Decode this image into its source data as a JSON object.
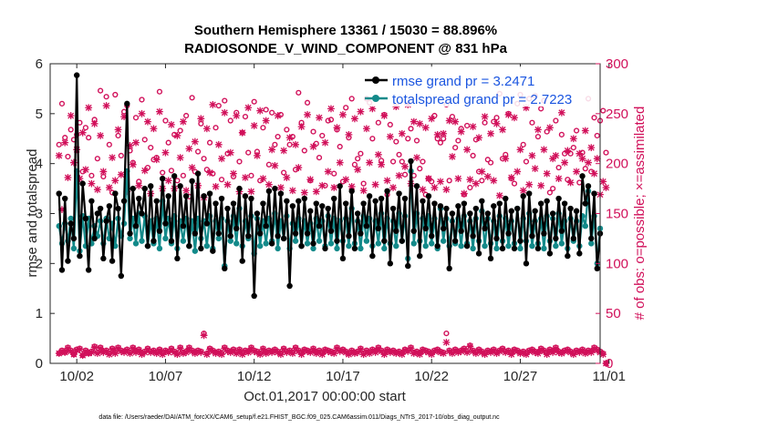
{
  "chart_data": {
    "type": "line",
    "title_line1": "Southern Hemisphere 13361 / 15030 = 88.896%",
    "title_line2": "RADIOSONDE_V_WIND_COMPONENT @ 831 hPa",
    "xlabel": "Oct.01,2017 00:00:00 start",
    "ylabel": "rmse and totalspread",
    "ylabel_right": "# of obs: o=possible; ×=assimilated",
    "footer": "data file: /Users/raeder/DAI/ATM_forcXX/CAM6_setup/f.e21.FHIST_BGC.f09_025.CAM6assim.011/Diags_NTrS_2017-10/obs_diag_output.nc",
    "xlim": [
      0.5,
      31.5
    ],
    "ylim": [
      0,
      6
    ],
    "ylim_right": [
      0,
      300
    ],
    "x_ticks": [
      2,
      7,
      12,
      17,
      22,
      27,
      32
    ],
    "x_tick_labels": [
      "10/02",
      "10/07",
      "10/12",
      "10/17",
      "10/22",
      "10/27",
      "11/01"
    ],
    "y_ticks": [
      0,
      1,
      2,
      3,
      4,
      5,
      6
    ],
    "y_ticks_right": [
      0,
      50,
      100,
      150,
      200,
      250,
      300
    ],
    "series": [
      {
        "name": "rmse grand pr = 3.2471",
        "color": "#000000",
        "marker": "filled-circle",
        "values": [
          3.4,
          1.87,
          3.3,
          2.05,
          2.8,
          2.5,
          5.77,
          2.15,
          3.6,
          2.9,
          1.87,
          3.25,
          2.5,
          3.0,
          3.1,
          2.1,
          2.85,
          3.15,
          2.05,
          3.4,
          3.1,
          1.75,
          3.25,
          5.2,
          2.6,
          3.5,
          2.75,
          3.3,
          3.0,
          3.5,
          2.35,
          3.55,
          2.45,
          3.25,
          2.65,
          3.7,
          2.8,
          3.35,
          2.45,
          3.75,
          2.1,
          3.55,
          2.75,
          3.35,
          2.35,
          3.65,
          2.6,
          3.8,
          2.3,
          3.35,
          2.8,
          3.4,
          2.25,
          3.2,
          2.6,
          3.3,
          1.9,
          3.1,
          2.55,
          3.2,
          2.7,
          3.5,
          2.05,
          3.35,
          2.55,
          3.3,
          1.35,
          3.0,
          2.6,
          3.2,
          2.75,
          3.45,
          2.4,
          3.5,
          2.55,
          3.4,
          2.5,
          3.25,
          1.55,
          3.15,
          2.6,
          3.25,
          2.35,
          3.3,
          2.6,
          3.05,
          2.4,
          3.2,
          2.75,
          3.15,
          2.3,
          3.1,
          2.65,
          3.3,
          2.45,
          3.55,
          2.1,
          3.2,
          2.55,
          3.45,
          2.3,
          3.0,
          2.6,
          3.2,
          2.75,
          3.35,
          2.15,
          3.25,
          2.7,
          3.3,
          2.45,
          3.45,
          2.0,
          3.1,
          2.65,
          3.4,
          2.45,
          3.3,
          1.95,
          4.05,
          2.65,
          3.55,
          2.15,
          3.25,
          2.7,
          3.35,
          2.55,
          3.2,
          2.35,
          3.15,
          2.7,
          3.1,
          1.9,
          3.0,
          2.45,
          3.15,
          2.65,
          3.2,
          2.35,
          3.0,
          2.55,
          3.1,
          2.2,
          3.25,
          2.7,
          3.0,
          2.1,
          3.15,
          2.5,
          3.2,
          2.3,
          3.3,
          2.6,
          3.05,
          2.3,
          3.1,
          2.45,
          3.35,
          2.0,
          3.4,
          2.55,
          3.05,
          2.3,
          3.2,
          2.6,
          3.25,
          2.2,
          3.0,
          2.5,
          3.3,
          2.65,
          3.2,
          2.15,
          3.1,
          2.5,
          3.05,
          2.2,
          3.75,
          3.2,
          3.55,
          2.5,
          3.4,
          1.9,
          2.6
        ]
      },
      {
        "name": "totalspread grand pr = 2.7223",
        "color": "#138a8a",
        "marker": "filled-circle",
        "values": [
          2.75,
          2.4,
          2.8,
          2.45,
          2.9,
          2.3,
          3.85,
          2.25,
          2.95,
          2.35,
          2.9,
          2.4,
          2.75,
          2.55,
          2.85,
          2.4,
          2.9,
          2.5,
          2.8,
          2.35,
          2.9,
          2.55,
          2.8,
          3.85,
          2.5,
          2.9,
          2.4,
          3.0,
          2.45,
          2.95,
          2.35,
          2.85,
          2.4,
          2.9,
          2.3,
          3.25,
          2.5,
          2.9,
          2.4,
          2.95,
          2.3,
          2.85,
          2.45,
          2.9,
          2.35,
          2.85,
          2.25,
          2.9,
          2.5,
          2.85,
          2.35,
          2.95,
          2.3,
          2.85,
          2.5,
          2.9,
          1.95,
          2.85,
          2.45,
          2.95,
          2.4,
          3.1,
          2.35,
          2.85,
          2.5,
          2.95,
          2.2,
          2.9,
          2.35,
          2.85,
          2.4,
          2.9,
          2.45,
          3.0,
          2.3,
          2.85,
          2.5,
          2.95,
          2.3,
          2.8,
          2.45,
          2.9,
          2.35,
          2.85,
          2.4,
          2.8,
          2.3,
          2.9,
          2.45,
          2.85,
          2.35,
          2.95,
          2.4,
          2.9,
          2.3,
          2.85,
          2.45,
          2.9,
          2.35,
          3.1,
          2.4,
          2.85,
          2.3,
          2.95,
          2.45,
          2.9,
          2.35,
          2.85,
          2.4,
          3.0,
          2.3,
          2.9,
          2.4,
          2.85,
          2.35,
          3.0,
          2.45,
          2.95,
          2.1,
          3.85,
          2.4,
          3.0,
          2.45,
          2.9,
          2.35,
          2.95,
          2.4,
          2.9,
          2.3,
          3.1,
          2.45,
          2.9,
          2.35,
          2.85,
          2.4,
          2.9,
          2.35,
          2.95,
          2.4,
          2.85,
          2.3,
          2.9,
          2.45,
          3.05,
          2.35,
          2.9,
          2.4,
          2.85,
          2.3,
          2.95,
          2.45,
          2.9,
          2.35,
          2.85,
          2.4,
          3.1,
          2.3,
          2.9,
          2.45,
          3.0,
          2.35,
          2.85,
          2.4,
          2.9,
          2.3,
          2.95,
          2.45,
          2.9,
          2.35,
          3.0,
          2.4,
          2.85,
          2.3,
          2.9,
          2.45,
          2.85,
          2.35,
          2.95,
          2.75,
          3.45,
          2.4,
          2.95,
          2.0,
          2.7
        ]
      }
    ],
    "obs_possible_high": [
      219,
      260,
      226,
      207,
      234,
      224,
      229,
      241,
      192,
      236,
      226,
      188,
      244,
      205,
      273,
      187,
      267,
      219,
      171,
      269,
      228,
      208,
      252,
      258,
      213,
      201,
      246,
      182,
      264,
      224,
      196,
      216,
      204,
      206,
      272,
      191,
      243,
      221,
      193,
      229,
      183,
      233,
      188,
      248,
      167,
      266,
      192,
      212,
      240,
      205,
      194,
      221,
      190,
      236,
      258,
      184,
      263,
      210,
      243,
      187,
      251,
      202,
      231,
      247,
      211,
      188,
      262,
      212,
      183,
      236,
      254,
      199,
      251,
      219,
      227,
      249,
      191,
      234,
      219,
      227,
      194,
      271,
      241,
      213,
      261,
      183,
      232,
      220,
      206,
      228,
      178,
      243,
      244,
      190,
      234,
      217,
      182,
      256,
      226,
      265,
      199,
      205,
      210,
      180,
      265,
      261,
      225,
      265,
      241,
      203,
      249,
      169,
      239,
      202,
      222,
      209,
      202,
      189,
      225,
      235,
      188,
      223,
      195,
      202,
      169,
      185,
      182,
      248,
      225,
      221,
      225,
      259,
      183,
      247,
      216,
      223,
      235,
      169,
      238,
      176,
      208,
      224,
      192,
      183,
      241,
      204,
      201,
      242,
      246,
      270,
      205,
      209,
      250,
      185,
      180,
      260,
      269,
      219,
      202,
      265,
      241,
      268,
      227,
      255,
      263,
      232,
      171,
      175,
      243,
      196,
      229,
      210,
      184,
      210,
      216,
      233,
      181,
      211,
      195,
      265,
      192,
      246,
      228,
      243,
      253,
      211
    ],
    "obs_assim_high": [
      208,
      154,
      221,
      186,
      248,
      201,
      214,
      185,
      231,
      194,
      256,
      180,
      240,
      174,
      228,
      192,
      258,
      176,
      206,
      183,
      234,
      189,
      247,
      172,
      218,
      199,
      221,
      178,
      250,
      193,
      242,
      170,
      235,
      204,
      252,
      175,
      211,
      183,
      239,
      175,
      228,
      206,
      242,
      173,
      215,
      196,
      222,
      178,
      245,
      166,
      235,
      191,
      259,
      177,
      219,
      205,
      251,
      179,
      211,
      190,
      248,
      172,
      231,
      186,
      256,
      172,
      238,
      208,
      253,
      185,
      243,
      179,
      214,
      198,
      248,
      176,
      213,
      186,
      226,
      173,
      219,
      196,
      237,
      171,
      249,
      184,
      217,
      172,
      246,
      178,
      221,
      192,
      255,
      176,
      236,
      201,
      249,
      184,
      229,
      177,
      245,
      194,
      252,
      173,
      235,
      201,
      255,
      179,
      209,
      199,
      248,
      183,
      227,
      176,
      257,
      188,
      230,
      197,
      259,
      180,
      242,
      206,
      240,
      174,
      236,
      185,
      245,
      176,
      229,
      182,
      230,
      174,
      243,
      207,
      242,
      185,
      232,
      170,
      214,
      184,
      237,
      180,
      226,
      192,
      247,
      187,
      230,
      183,
      240,
      168,
      234,
      205,
      249,
      186,
      246,
      192,
      214,
      173,
      256,
      179,
      208,
      195,
      234,
      178,
      214,
      190,
      236,
      205,
      208,
      185,
      251,
      201,
      213,
      181,
      225,
      192,
      210,
      205,
      233,
      201,
      216,
      190,
      205,
      169,
      182,
      176
    ],
    "obs_possible_low": [
      10,
      13,
      11,
      16,
      13,
      9,
      14,
      15,
      8,
      13,
      10,
      12,
      17,
      11,
      16,
      12,
      13,
      10,
      15,
      11,
      16,
      13,
      12,
      14,
      11,
      16,
      12,
      14,
      10,
      12,
      15,
      12,
      13,
      11,
      14,
      10,
      13,
      12,
      15,
      12,
      10,
      16,
      11,
      12,
      16,
      13,
      11,
      13,
      12,
      30,
      10,
      15,
      13,
      11,
      12,
      10,
      16,
      13,
      12,
      14,
      11,
      14,
      10,
      13,
      12,
      16,
      13,
      12,
      10,
      15,
      11,
      13,
      12,
      14,
      12,
      10,
      15,
      12,
      13,
      11,
      16,
      13,
      10,
      14,
      13,
      12,
      15,
      11,
      13,
      10,
      14,
      13,
      12,
      11,
      16,
      13,
      14,
      12,
      10,
      13,
      11,
      12,
      15,
      10,
      13,
      11,
      14,
      12,
      16,
      13,
      10,
      14,
      12,
      13,
      11,
      12,
      10,
      14,
      13,
      16,
      11,
      12,
      10,
      14,
      13,
      12,
      10,
      13,
      14,
      12,
      11,
      30,
      13,
      11,
      14,
      12,
      13,
      15,
      12,
      18,
      13,
      11,
      14,
      12,
      10,
      13,
      12,
      14,
      11,
      13,
      15,
      12,
      13,
      10,
      14,
      13,
      11,
      12,
      10,
      13,
      14,
      12,
      11,
      15,
      13,
      10,
      14,
      12,
      16,
      12,
      11,
      13,
      14,
      12,
      10,
      13,
      12,
      14,
      11,
      13,
      12,
      16,
      14,
      12,
      10,
      0
    ],
    "obs_assim_low": [
      10,
      12,
      11,
      15,
      12,
      9,
      13,
      14,
      8,
      12,
      10,
      11,
      16,
      10,
      15,
      11,
      12,
      9,
      14,
      10,
      15,
      12,
      11,
      13,
      10,
      15,
      11,
      13,
      9,
      11,
      14,
      11,
      12,
      10,
      13,
      9,
      12,
      11,
      14,
      11,
      9,
      15,
      10,
      11,
      15,
      12,
      10,
      12,
      11,
      28,
      9,
      14,
      12,
      10,
      11,
      9,
      15,
      12,
      11,
      13,
      10,
      13,
      9,
      12,
      11,
      15,
      12,
      11,
      9,
      14,
      10,
      12,
      11,
      13,
      11,
      9,
      14,
      11,
      12,
      10,
      15,
      12,
      9,
      13,
      12,
      11,
      14,
      10,
      12,
      9,
      13,
      12,
      11,
      10,
      15,
      12,
      13,
      11,
      9,
      12,
      10,
      11,
      14,
      9,
      12,
      10,
      13,
      11,
      15,
      12,
      9,
      13,
      11,
      12,
      10,
      11,
      9,
      13,
      12,
      15,
      10,
      11,
      9,
      13,
      12,
      11,
      9,
      12,
      13,
      11,
      10,
      21,
      12,
      10,
      13,
      11,
      12,
      14,
      11,
      17,
      12,
      10,
      13,
      11,
      9,
      12,
      11,
      13,
      10,
      12,
      14,
      11,
      12,
      9,
      13,
      12,
      10,
      11,
      9,
      12,
      13,
      11,
      10,
      14,
      12,
      9,
      13,
      11,
      15,
      11,
      10,
      12,
      13,
      11,
      9,
      12,
      11,
      13,
      10,
      12,
      11,
      15,
      13,
      11,
      9,
      0
    ],
    "colors": {
      "rmse": "#000000",
      "spread": "#138a8a",
      "obs": "#d1105a",
      "legend_text": "#1a55e0"
    }
  }
}
